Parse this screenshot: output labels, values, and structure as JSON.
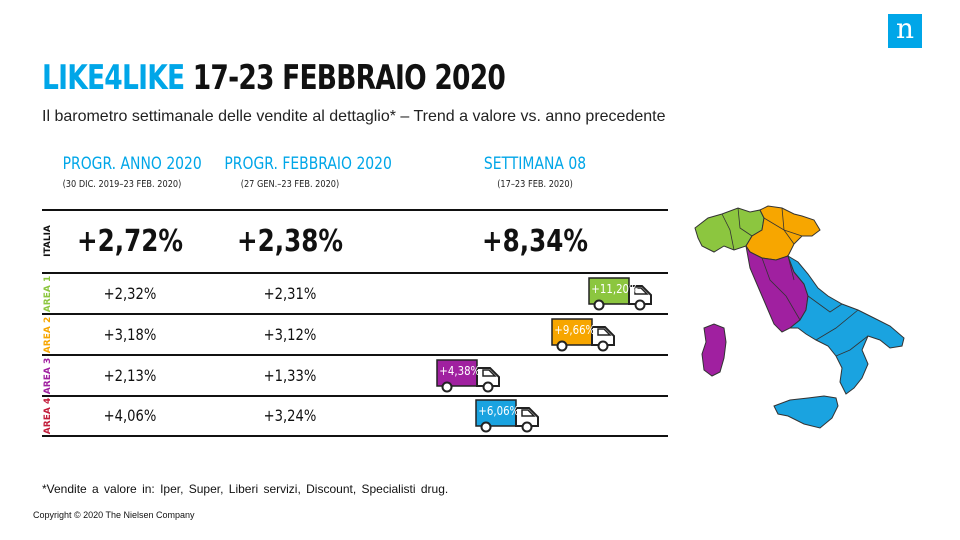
{
  "brand": {
    "logo_letter": "n",
    "color": "#00a6e8"
  },
  "title": {
    "accent": "LIKE4LIKE",
    "main": " 17-23 FEBBRAIO 2020"
  },
  "subtitle": "Il barometro settimanale delle vendite al dettaglio* – Trend a valore vs. anno precedente",
  "columns": [
    {
      "label": "PROGR. ANNO 2020",
      "sub": "(30 DIC. 2019–23 FEB. 2020)"
    },
    {
      "label": "PROGR. FEBBRAIO 2020",
      "sub": "(27 GEN.–23 FEB. 2020)"
    },
    {
      "label": "SETTIMANA 08",
      "sub": "(17–23 FEB. 2020)"
    }
  ],
  "rows": [
    {
      "label": "ITALIA",
      "color": "#111111",
      "anno": "+2,72%",
      "febbraio": "+2,38%",
      "settimana": "+8,34%"
    },
    {
      "label": "AREA 1",
      "color": "#8cc63f",
      "anno": "+2,32%",
      "febbraio": "+2,31%",
      "settimana": "+11,20%"
    },
    {
      "label": "AREA 2",
      "color": "#f7a600",
      "anno": "+3,18%",
      "febbraio": "+3,12%",
      "settimana": "+9,66%"
    },
    {
      "label": "AREA 3",
      "color": "#a020a0",
      "anno": "+2,13%",
      "febbraio": "+1,33%",
      "settimana": "+4,38%"
    },
    {
      "label": "AREA 4",
      "color": "#1aa3e0",
      "anno": "+4,06%",
      "febbraio": "+3,24%",
      "settimana": "+6,06%"
    }
  ],
  "footnote": "*Vendite a valore in: Iper, Super, Liberi servizi, Discount, Specialisti drug.",
  "copyright": "Copyright © 2020 The Nielsen Company"
}
